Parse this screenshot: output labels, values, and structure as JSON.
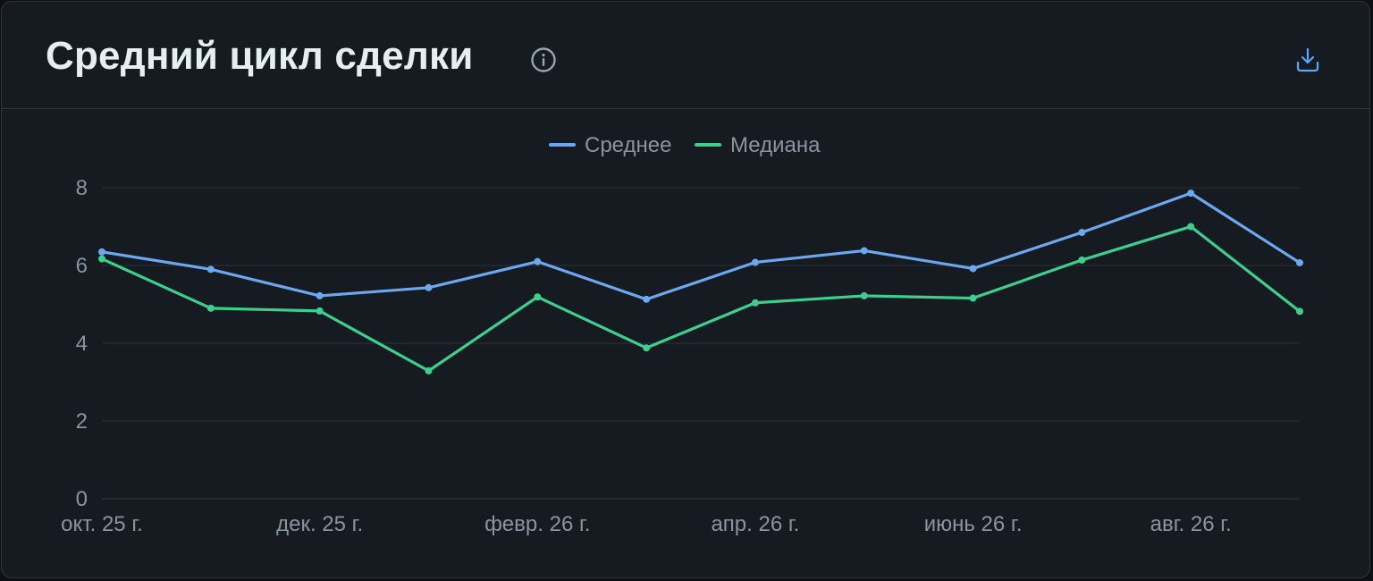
{
  "header": {
    "title": "Средний цикл сделки",
    "info_icon": "info-circle-icon",
    "download_icon": "download-icon"
  },
  "colors": {
    "background": "#161b22",
    "series_mean": "#6ca8f0",
    "series_median": "#3ecf8e",
    "grid": "#262c36",
    "text_muted": "#8b949e",
    "title": "#e6edf3"
  },
  "chart_data": {
    "type": "line",
    "title": "",
    "xlabel": "",
    "ylabel": "",
    "ylim": [
      0,
      8
    ],
    "yticks": [
      "0",
      "2",
      "4",
      "6",
      "8"
    ],
    "x": [
      "2025-10",
      "2025-11",
      "2025-12",
      "2026-01",
      "2026-02",
      "2026-03",
      "2026-04",
      "2026-05",
      "2026-06",
      "2026-07",
      "2026-08",
      "2026-09"
    ],
    "xtick_labels": [
      {
        "index": 0,
        "label": "окт. 25 г."
      },
      {
        "index": 2,
        "label": "дек. 25 г."
      },
      {
        "index": 4,
        "label": "февр. 26 г."
      },
      {
        "index": 6,
        "label": "апр. 26 г."
      },
      {
        "index": 8,
        "label": "июнь 26 г."
      },
      {
        "index": 10,
        "label": "авг. 26 г."
      }
    ],
    "legend_position": "top-center",
    "grid": true,
    "series": [
      {
        "name": "Среднее",
        "color": "#6ca8f0",
        "values": [
          6.35,
          5.9,
          5.22,
          5.43,
          6.1,
          5.13,
          6.08,
          6.38,
          5.92,
          6.85,
          7.86,
          6.07
        ]
      },
      {
        "name": "Медиана",
        "color": "#3ecf8e",
        "values": [
          6.17,
          4.9,
          4.83,
          3.29,
          5.19,
          3.88,
          5.04,
          5.22,
          5.16,
          6.14,
          7.0,
          4.82
        ]
      }
    ]
  }
}
